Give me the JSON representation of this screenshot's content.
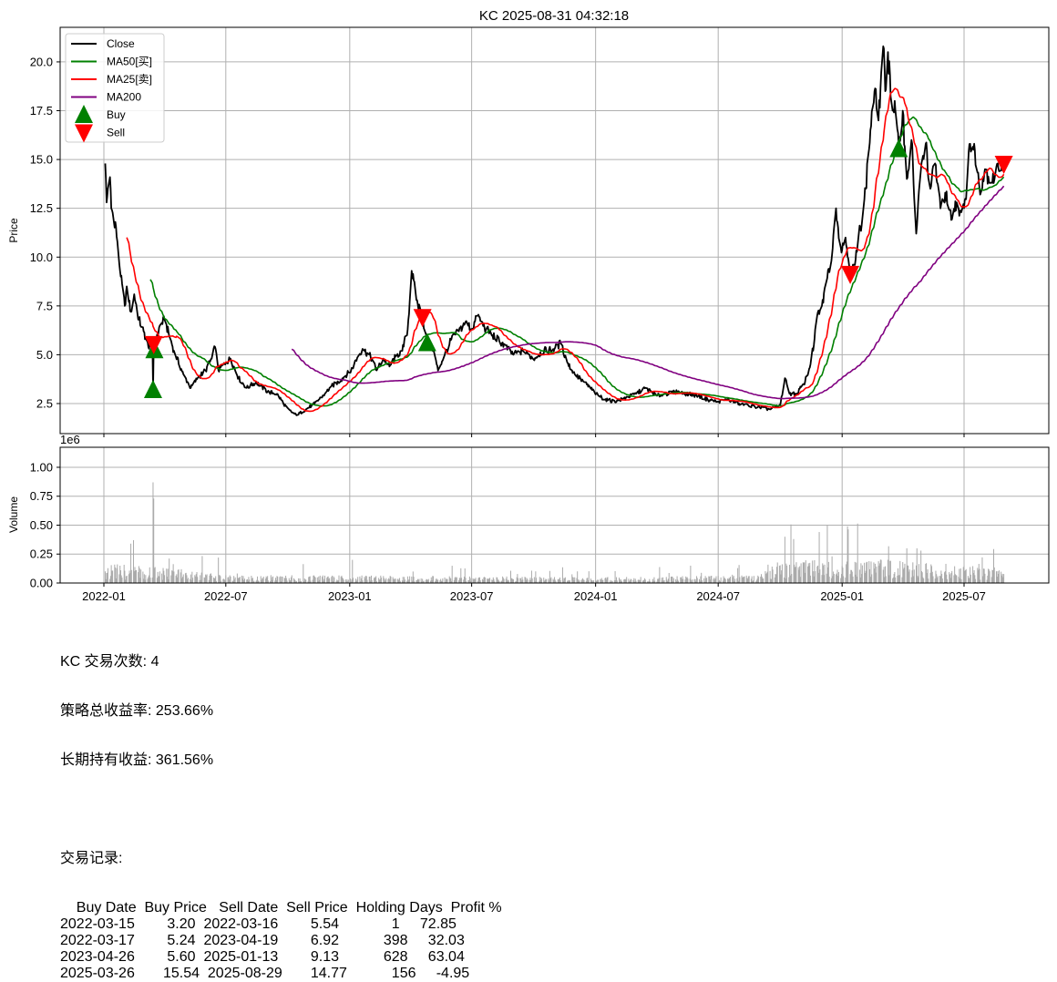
{
  "chart_data": {
    "type": "line",
    "title": "KC 2025-08-31 04:32:18",
    "price_panel": {
      "ylabel": "Price",
      "ylim": [
        0.96,
        21.77
      ],
      "yticks": [
        2.5,
        5.0,
        7.5,
        10.0,
        12.5,
        15.0,
        17.5,
        20.0
      ],
      "ytick_labels": [
        "2.5",
        "5.0",
        "7.5",
        "10.0",
        "12.5",
        "15.0",
        "17.5",
        "20.0"
      ],
      "grid": true,
      "legend_position": "top-left",
      "legend": [
        {
          "label": "Close",
          "color": "#000000",
          "kind": "line"
        },
        {
          "label": "MA50[买]",
          "color": "#008000",
          "kind": "line"
        },
        {
          "label": "MA25[卖]",
          "color": "#ff0000",
          "kind": "line"
        },
        {
          "label": "MA200",
          "color": "#800080",
          "kind": "line"
        },
        {
          "label": "Buy",
          "color": "#008000",
          "kind": "triangle-up"
        },
        {
          "label": "Sell",
          "color": "#ff0000",
          "kind": "triangle-down"
        }
      ],
      "ma_windows": {
        "MA50": 50,
        "MA25": 25,
        "MA200": 200
      },
      "close_keypoints": [
        [
          "2022-01-03",
          14.8
        ],
        [
          "2022-01-05",
          12.8
        ],
        [
          "2022-01-07",
          13.5
        ],
        [
          "2022-01-10",
          14.1
        ],
        [
          "2022-01-12",
          12.5
        ],
        [
          "2022-01-18",
          11.8
        ],
        [
          "2022-01-21",
          10.8
        ],
        [
          "2022-01-26",
          9.0
        ],
        [
          "2022-02-01",
          7.5
        ],
        [
          "2022-02-04",
          8.5
        ],
        [
          "2022-02-10",
          7.2
        ],
        [
          "2022-02-15",
          8.1
        ],
        [
          "2022-02-22",
          6.8
        ],
        [
          "2022-03-01",
          6.2
        ],
        [
          "2022-03-08",
          5.4
        ],
        [
          "2022-03-14",
          5.8
        ],
        [
          "2022-03-15",
          3.2
        ],
        [
          "2022-03-16",
          5.54
        ],
        [
          "2022-03-17",
          5.24
        ],
        [
          "2022-03-25",
          6.5
        ],
        [
          "2022-04-01",
          6.8
        ],
        [
          "2022-04-15",
          5.2
        ],
        [
          "2022-04-29",
          4.0
        ],
        [
          "2022-05-10",
          3.3
        ],
        [
          "2022-05-20",
          3.8
        ],
        [
          "2022-06-01",
          4.2
        ],
        [
          "2022-06-10",
          4.8
        ],
        [
          "2022-06-15",
          5.4
        ],
        [
          "2022-06-20",
          4.2
        ],
        [
          "2022-07-01",
          4.6
        ],
        [
          "2022-07-08",
          4.8
        ],
        [
          "2022-07-20",
          3.8
        ],
        [
          "2022-08-01",
          3.3
        ],
        [
          "2022-08-15",
          3.6
        ],
        [
          "2022-09-01",
          3.1
        ],
        [
          "2022-09-15",
          3.0
        ],
        [
          "2022-10-01",
          2.2
        ],
        [
          "2022-10-14",
          1.9
        ],
        [
          "2022-10-28",
          2.2
        ],
        [
          "2022-11-10",
          2.5
        ],
        [
          "2022-11-25",
          3.0
        ],
        [
          "2022-12-05",
          3.4
        ],
        [
          "2022-12-15",
          3.6
        ],
        [
          "2023-01-03",
          4.2
        ],
        [
          "2023-01-13",
          4.9
        ],
        [
          "2023-01-20",
          5.3
        ],
        [
          "2023-02-01",
          4.9
        ],
        [
          "2023-02-10",
          4.2
        ],
        [
          "2023-02-20",
          4.8
        ],
        [
          "2023-03-01",
          4.4
        ],
        [
          "2023-03-10",
          4.9
        ],
        [
          "2023-03-20",
          5.2
        ],
        [
          "2023-03-28",
          6.3
        ],
        [
          "2023-04-03",
          9.3
        ],
        [
          "2023-04-10",
          7.8
        ],
        [
          "2023-04-19",
          6.92
        ],
        [
          "2023-04-26",
          5.6
        ],
        [
          "2023-05-05",
          5.3
        ],
        [
          "2023-05-12",
          4.2
        ],
        [
          "2023-05-22",
          5.0
        ],
        [
          "2023-06-01",
          5.8
        ],
        [
          "2023-06-12",
          6.2
        ],
        [
          "2023-06-22",
          6.7
        ],
        [
          "2023-07-01",
          6.3
        ],
        [
          "2023-07-10",
          7.0
        ],
        [
          "2023-07-20",
          6.4
        ],
        [
          "2023-08-01",
          6.0
        ],
        [
          "2023-08-15",
          5.6
        ],
        [
          "2023-09-01",
          5.0
        ],
        [
          "2023-09-15",
          5.2
        ],
        [
          "2023-10-01",
          4.8
        ],
        [
          "2023-10-15",
          5.2
        ],
        [
          "2023-11-01",
          5.3
        ],
        [
          "2023-11-10",
          5.6
        ],
        [
          "2023-11-20",
          4.6
        ],
        [
          "2023-12-01",
          4.0
        ],
        [
          "2023-12-15",
          3.6
        ],
        [
          "2024-01-02",
          3.0
        ],
        [
          "2024-01-15",
          2.7
        ],
        [
          "2024-02-01",
          2.6
        ],
        [
          "2024-02-15",
          2.8
        ],
        [
          "2024-03-01",
          3.0
        ],
        [
          "2024-03-15",
          3.3
        ],
        [
          "2024-04-01",
          2.9
        ],
        [
          "2024-04-15",
          3.0
        ],
        [
          "2024-05-01",
          3.1
        ],
        [
          "2024-05-15",
          3.0
        ],
        [
          "2024-06-01",
          2.9
        ],
        [
          "2024-06-15",
          2.7
        ],
        [
          "2024-07-01",
          2.6
        ],
        [
          "2024-07-15",
          2.7
        ],
        [
          "2024-08-01",
          2.5
        ],
        [
          "2024-08-15",
          2.4
        ],
        [
          "2024-09-01",
          2.3
        ],
        [
          "2024-09-15",
          2.2
        ],
        [
          "2024-10-01",
          2.4
        ],
        [
          "2024-10-08",
          3.8
        ],
        [
          "2024-10-15",
          3.0
        ],
        [
          "2024-10-25",
          3.0
        ],
        [
          "2024-11-05",
          3.5
        ],
        [
          "2024-11-12",
          4.1
        ],
        [
          "2024-11-20",
          5.5
        ],
        [
          "2024-11-25",
          7.0
        ],
        [
          "2024-12-02",
          7.5
        ],
        [
          "2024-12-09",
          8.8
        ],
        [
          "2024-12-16",
          9.8
        ],
        [
          "2024-12-23",
          12.5
        ],
        [
          "2024-12-30",
          10.5
        ],
        [
          "2025-01-06",
          11.0
        ],
        [
          "2025-01-13",
          9.13
        ],
        [
          "2025-01-20",
          9.6
        ],
        [
          "2025-01-28",
          11.5
        ],
        [
          "2025-02-05",
          13.5
        ],
        [
          "2025-02-12",
          16.5
        ],
        [
          "2025-02-18",
          18.5
        ],
        [
          "2025-02-24",
          17.0
        ],
        [
          "2025-03-03",
          20.8
        ],
        [
          "2025-03-06",
          18.5
        ],
        [
          "2025-03-10",
          20.5
        ],
        [
          "2025-03-17",
          17.5
        ],
        [
          "2025-03-20",
          18.0
        ],
        [
          "2025-03-26",
          15.54
        ],
        [
          "2025-04-01",
          17.5
        ],
        [
          "2025-04-07",
          14.0
        ],
        [
          "2025-04-14",
          16.0
        ],
        [
          "2025-04-21",
          11.2
        ],
        [
          "2025-04-28",
          14.5
        ],
        [
          "2025-05-05",
          15.8
        ],
        [
          "2025-05-12",
          13.5
        ],
        [
          "2025-05-19",
          14.8
        ],
        [
          "2025-05-27",
          12.5
        ],
        [
          "2025-06-03",
          13.3
        ],
        [
          "2025-06-12",
          11.9
        ],
        [
          "2025-06-20",
          12.8
        ],
        [
          "2025-06-27",
          12.3
        ],
        [
          "2025-07-03",
          13.0
        ],
        [
          "2025-07-10",
          15.8
        ],
        [
          "2025-07-17",
          15.5
        ],
        [
          "2025-07-24",
          13.5
        ],
        [
          "2025-08-01",
          14.5
        ],
        [
          "2025-08-12",
          13.8
        ],
        [
          "2025-08-20",
          14.8
        ],
        [
          "2025-08-29",
          14.77
        ]
      ],
      "buy_markers": [
        [
          "2022-03-15",
          3.2
        ],
        [
          "2022-03-17",
          5.24
        ],
        [
          "2023-04-26",
          5.6
        ],
        [
          "2025-03-26",
          15.54
        ]
      ],
      "sell_markers": [
        [
          "2022-03-16",
          5.54
        ],
        [
          "2023-04-19",
          6.92
        ],
        [
          "2025-01-13",
          9.13
        ],
        [
          "2025-08-29",
          14.77
        ]
      ]
    },
    "volume_panel": {
      "ylabel": "Volume",
      "offset_label": "1e6",
      "ylim": [
        0,
        1.173
      ],
      "yticks": [
        0,
        0.25,
        0.5,
        0.75,
        1.0
      ],
      "ytick_labels": [
        "0.00",
        "0.25",
        "0.50",
        "0.75",
        "1.00"
      ],
      "level_keypoints": [
        [
          "2022-01-03",
          0.1
        ],
        [
          "2022-04-01",
          0.08
        ],
        [
          "2022-07-01",
          0.04
        ],
        [
          "2023-01-01",
          0.04
        ],
        [
          "2024-01-01",
          0.03
        ],
        [
          "2024-09-01",
          0.04
        ],
        [
          "2024-10-01",
          0.12
        ],
        [
          "2025-03-01",
          0.12
        ],
        [
          "2025-08-29",
          0.08
        ]
      ],
      "spikes": [
        [
          "2022-03-15",
          0.87
        ],
        [
          "2022-03-16",
          0.73
        ],
        [
          "2022-02-14",
          0.37
        ],
        [
          "2022-02-10",
          0.34
        ],
        [
          "2022-06-20",
          0.22
        ],
        [
          "2023-01-05",
          0.2
        ],
        [
          "2024-10-08",
          0.4
        ],
        [
          "2024-10-21",
          0.38
        ],
        [
          "2025-04-07",
          0.3
        ],
        [
          "2025-04-22",
          0.3
        ],
        [
          "2025-04-28",
          0.28
        ]
      ]
    },
    "xticks": [
      "2022-01-01",
      "2022-07-01",
      "2023-01-01",
      "2023-07-01",
      "2024-01-01",
      "2024-07-01",
      "2025-01-01",
      "2025-07-01"
    ],
    "xtick_labels": [
      "2022-01",
      "2022-07",
      "2023-01",
      "2023-07",
      "2024-01",
      "2024-07",
      "2025-01",
      "2025-07"
    ]
  },
  "summary": {
    "trade_count_line": "KC 交易次数: 4",
    "strategy_return_line": "策略总收益率: 253.66%",
    "buy_hold_line": "长期持有收益: 361.56%",
    "records_title": "交易记录:",
    "table": {
      "columns": [
        "Buy Date",
        "Buy Price",
        "Sell Date",
        "Sell Price",
        "Holding Days",
        "Profit %"
      ],
      "rows": [
        [
          "2022-03-15",
          "3.20",
          "2022-03-16",
          "5.54",
          "1",
          "72.85"
        ],
        [
          "2022-03-17",
          "5.24",
          "2023-04-19",
          "6.92",
          "398",
          "32.03"
        ],
        [
          "2023-04-26",
          "5.60",
          "2025-01-13",
          "9.13",
          "628",
          "63.04"
        ],
        [
          "2025-03-26",
          "15.54",
          "2025-08-29",
          "14.77",
          "156",
          "-4.95"
        ]
      ]
    }
  }
}
